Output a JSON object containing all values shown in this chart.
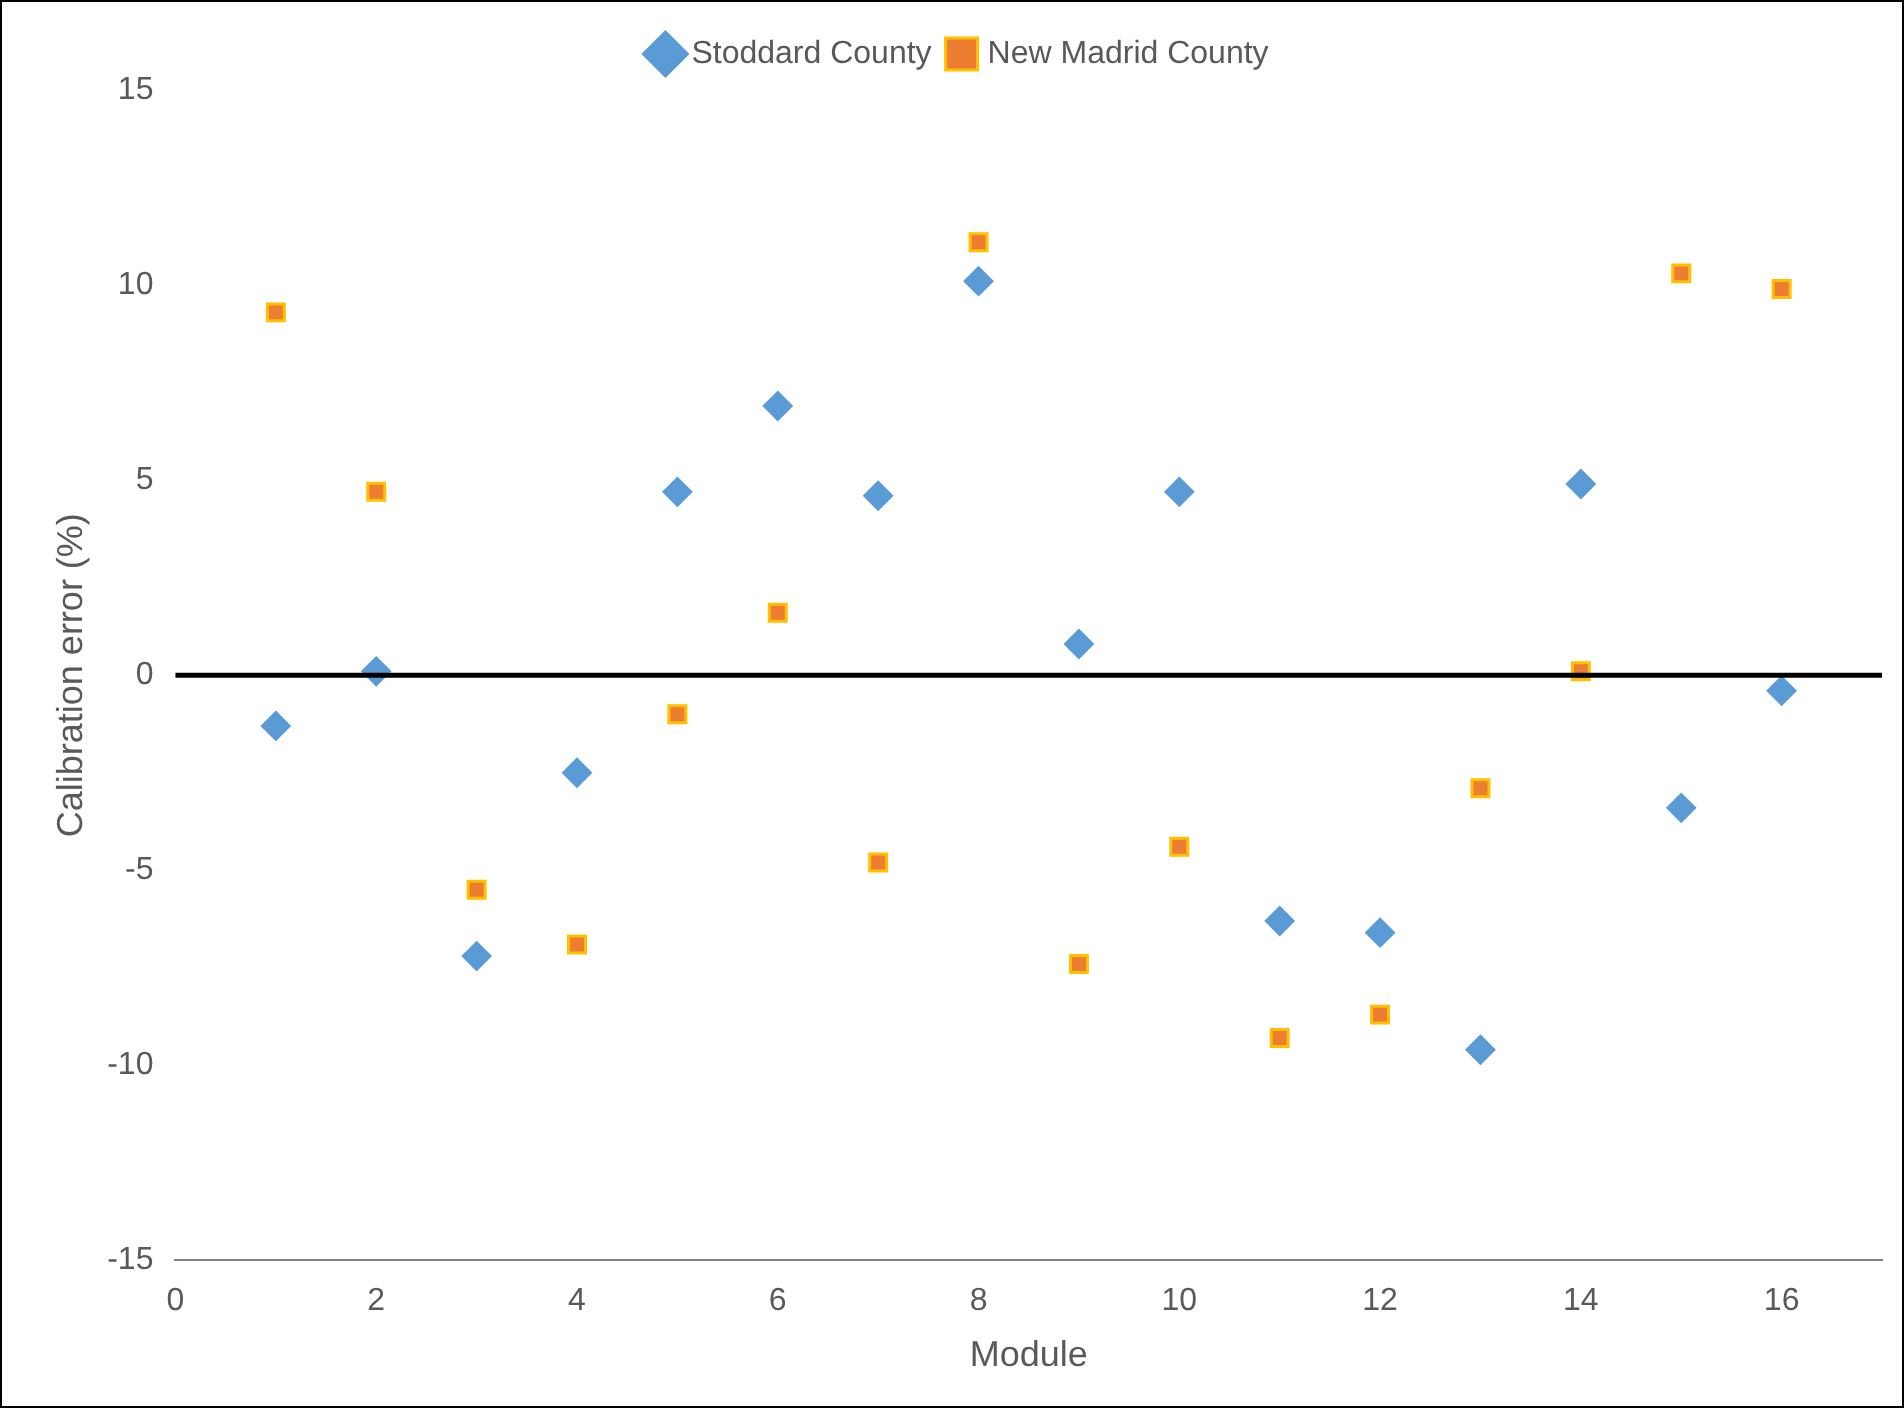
{
  "chart_data": {
    "type": "scatter",
    "xlabel": "Module",
    "ylabel": "Calibration error (%)",
    "x": [
      1,
      2,
      3,
      4,
      5,
      6,
      7,
      8,
      9,
      10,
      11,
      12,
      13,
      14,
      15,
      16
    ],
    "series": [
      {
        "name": "Stoddard County",
        "color": "#5b9bd5",
        "marker": "diamond",
        "values": [
          -1.3,
          0.1,
          -7.2,
          -2.5,
          4.7,
          6.9,
          4.6,
          10.1,
          0.8,
          4.7,
          -6.3,
          -6.6,
          -9.6,
          4.9,
          -3.4,
          -0.4
        ]
      },
      {
        "name": "New Madrid County",
        "color": "#ed7d31",
        "marker": "square",
        "values": [
          9.3,
          4.7,
          -5.5,
          -6.9,
          -1.0,
          1.6,
          -4.8,
          11.1,
          -7.4,
          -4.4,
          -9.3,
          -8.7,
          -2.9,
          0.1,
          10.3,
          9.9
        ]
      }
    ],
    "xlim": [
      0,
      17
    ],
    "xticks": [
      0,
      2,
      4,
      6,
      8,
      10,
      12,
      14,
      16
    ],
    "ylim": [
      -15,
      15
    ],
    "yticks": [
      -15,
      -10,
      -5,
      0,
      5,
      10,
      15
    ],
    "ref_lines": [
      {
        "axis": "y",
        "value": 0,
        "color": "#000000"
      }
    ],
    "grid": false,
    "legend": "top"
  }
}
